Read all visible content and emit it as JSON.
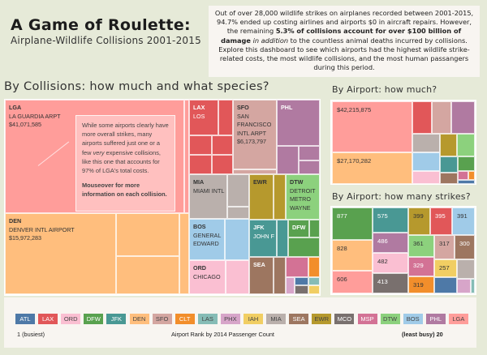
{
  "header": {
    "title": "A Game of Roulette:",
    "subtitle": "Airplane-Wildlife Collisions 2001-2015"
  },
  "intro": {
    "part1": "Out of over 28,000 wildlife strikes on airplanes recorded between 2001-2015, 94.7% ended up costing airlines and airports $0 in aircraft repairs. However, the remaining ",
    "bold": "5.3% of collisions account for over $100 billion of damage",
    "italic": "in addition",
    "part2": " to the countless animal deaths incurred by collisions. Explore this dashboard to see which airports had the highest wildlife strike-related costs, the most wildlife collisions, and the most human passangers during this period."
  },
  "collisions": {
    "title": "By Collisions: how much and what species?",
    "annotation": {
      "text": "While some airports clearly have more overall strikes, many airports suffered just one or a few",
      "italic": "very",
      "text2": "expensive collisions, like this one that accounts for 97% of LGA's total costs.",
      "bold": "Mouseover for more information on each collision."
    },
    "cells": [
      {
        "code": "LGA",
        "name": "LA GUARDIA ARPT",
        "cost": "$41,071,585"
      },
      {
        "code": "DEN",
        "name": "DENVER INTL AIRPORT",
        "cost": "$15,972,283"
      },
      {
        "code": "LAX",
        "name": "LOS",
        "cost": ""
      },
      {
        "code": "SFO",
        "name": "SAN FRANCISCO INTL ARPT",
        "cost": "$6,173,797"
      },
      {
        "code": "PHL",
        "name": "",
        "cost": ""
      },
      {
        "code": "MIA",
        "name": "MIAMI INTL",
        "cost": ""
      },
      {
        "code": "EWR",
        "name": "",
        "cost": ""
      },
      {
        "code": "DTW",
        "name": "DETROIT METRO WAYNE",
        "cost": ""
      },
      {
        "code": "BOS",
        "name": "GENERAL EDWARD",
        "cost": ""
      },
      {
        "code": "JFK",
        "name": "JOHN F",
        "cost": ""
      },
      {
        "code": "DFW",
        "name": "",
        "cost": ""
      },
      {
        "code": "ORD",
        "name": "CHICAGO",
        "cost": ""
      },
      {
        "code": "SEA",
        "name": "",
        "cost": ""
      }
    ]
  },
  "how_much": {
    "title": "By Airport: how much?",
    "labels": [
      "$42,215,875",
      "$27,170,282"
    ]
  },
  "how_many": {
    "title": "By Airport: how many strikes?",
    "values": [
      "877",
      "828",
      "606",
      "575",
      "486",
      "482",
      "413",
      "399",
      "395",
      "391",
      "361",
      "317",
      "300",
      "329",
      "257",
      "319"
    ]
  },
  "legend": {
    "airports": [
      "ATL",
      "LAX",
      "ORD",
      "DFW",
      "JFK",
      "DEN",
      "SFO",
      "CLT",
      "LAS",
      "PHX",
      "IAH",
      "MIA",
      "SEA",
      "EWR",
      "MCO",
      "MSP",
      "DTW",
      "BOS",
      "PHL",
      "LGA"
    ],
    "left_label": "1  (busiest)",
    "center_label": "Airport Rank by 2014 Passenger Count",
    "right_label": "(least  busy)  20"
  },
  "colors": {
    "ATL": "#4e79a7",
    "LAX": "#e15759",
    "ORD": "#fabfd2",
    "DFW": "#59a14f",
    "JFK": "#499894",
    "DEN": "#ffbe7d",
    "SFO": "#d4a6a1",
    "CLT": "#f28e2b",
    "LAS": "#86bcb6",
    "PHX": "#d7a5c9",
    "IAH": "#f1ce63",
    "MIA": "#bab0ac",
    "SEA": "#9d7660",
    "EWR": "#b6992d",
    "MCO": "#79706e",
    "MSP": "#d37295",
    "DTW": "#8cd17d",
    "BOS": "#a0cbe8",
    "PHL": "#b07aa1",
    "LGA": "#ff9d9a"
  }
}
